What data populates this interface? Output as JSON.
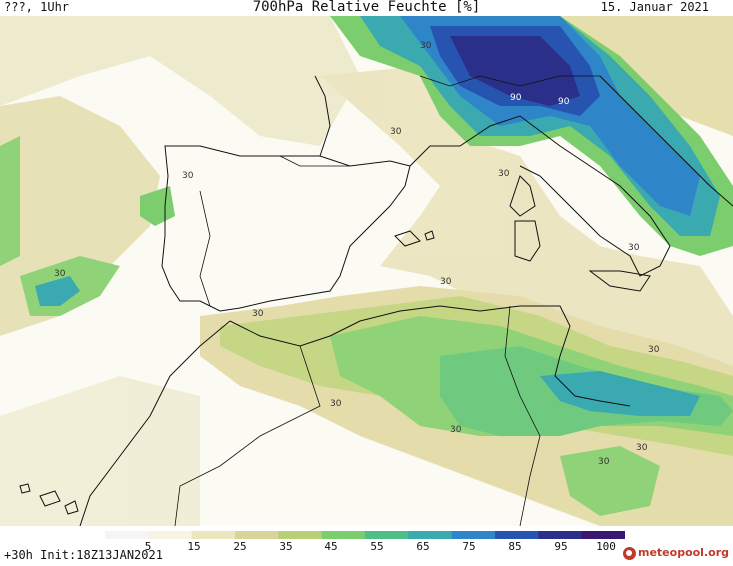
{
  "header": {
    "left": "???, 1Uhr",
    "title": "700hPa Relative Feuchte [%]",
    "date": "15. Januar 2021"
  },
  "footer": {
    "init": "+30h Init:18Z13JAN2021"
  },
  "colorbar": {
    "ticks": [
      "5",
      "15",
      "25",
      "35",
      "45",
      "55",
      "65",
      "75",
      "85",
      "95",
      "100"
    ],
    "colors": [
      "#f5f5f5",
      "#f7f4e4",
      "#ece6c0",
      "#d9d49a",
      "#b8cf76",
      "#7ccd6e",
      "#4fbf8a",
      "#3aa9b0",
      "#2e86c8",
      "#2654b0",
      "#2a2f8a",
      "#3b1870"
    ]
  },
  "logo": {
    "text": "meteopool.org"
  },
  "map": {
    "contour_labels": [
      "30",
      "30",
      "90",
      "90",
      "30",
      "30",
      "30",
      "30",
      "30",
      "30",
      "30",
      "30",
      "30",
      "30",
      "30"
    ]
  }
}
